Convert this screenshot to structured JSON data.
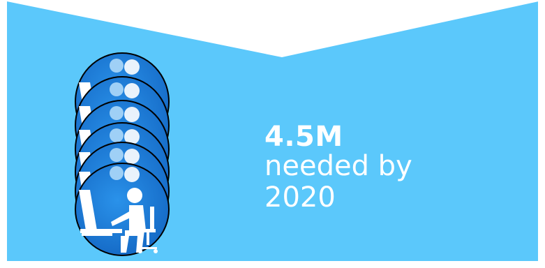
{
  "colors": {
    "background_panel": "#5bc8fb",
    "top_area": "#ffffff",
    "badge_fill": "#1a7fd8",
    "badge_outline": "#000000",
    "icon_fill": "#ffffff"
  },
  "badge_icon": "office-worker-at-desk-icon",
  "badge_stack_count": 6,
  "stat": {
    "value": "4.5M",
    "caption_line1": "needed by",
    "caption_line2": "2020"
  }
}
